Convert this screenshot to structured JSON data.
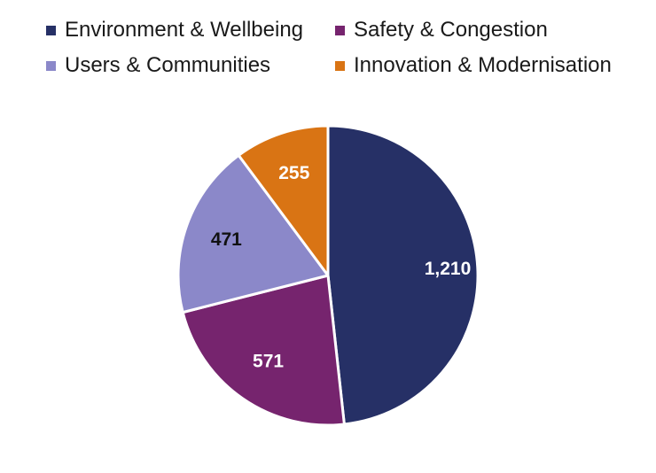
{
  "chart_data": {
    "type": "pie",
    "title": "",
    "legend_position": "top",
    "slices": [
      {
        "label": "Environment & Wellbeing",
        "value": 1210,
        "display": "1,210",
        "color": "#263066",
        "label_color": "#ffffff"
      },
      {
        "label": "Safety & Congestion",
        "value": 571,
        "display": "571",
        "color": "#76246e",
        "label_color": "#ffffff"
      },
      {
        "label": "Users & Communities",
        "value": 471,
        "display": "471",
        "color": "#8b88c9",
        "label_color": "#111111"
      },
      {
        "label": "Innovation & Modernisation",
        "value": 255,
        "display": "255",
        "color": "#d97414",
        "label_color": "#ffffff"
      }
    ]
  }
}
